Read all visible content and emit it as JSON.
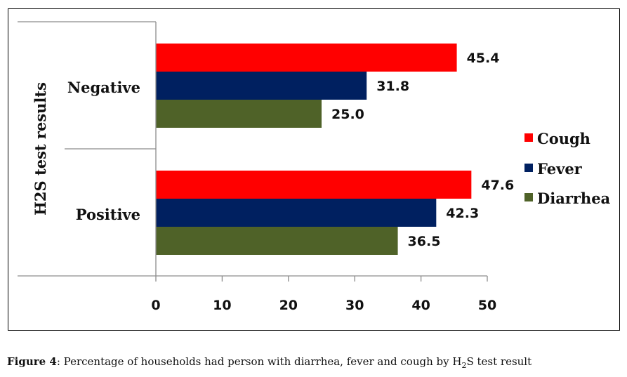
{
  "chart_data": {
    "type": "bar",
    "orientation": "horizontal",
    "categories": [
      "Negative",
      "Positive"
    ],
    "series": [
      {
        "name": "Cough",
        "color": "#ff0000",
        "values": [
          45.4,
          47.6
        ],
        "labels": [
          "45.4",
          "47.6"
        ]
      },
      {
        "name": "Fever",
        "color": "#002060",
        "values": [
          31.8,
          42.3
        ],
        "labels": [
          "31.8",
          "42.3"
        ]
      },
      {
        "name": "Diarrhea",
        "color": "#4f6228",
        "values": [
          25.0,
          36.5
        ],
        "labels": [
          "25.0",
          "36.5"
        ]
      }
    ],
    "xlim": [
      0,
      50
    ],
    "xticks": [
      "0",
      "10",
      "20",
      "30",
      "40",
      "50"
    ],
    "ylabel": "H2S test results",
    "legend_position": "right",
    "grid": false
  },
  "caption": {
    "label": "Figure 4",
    "text_before_sub": ": Percentage of households had person with diarrhea, fever and cough by H",
    "subscript": "2",
    "text_after_sub": "S test result"
  }
}
